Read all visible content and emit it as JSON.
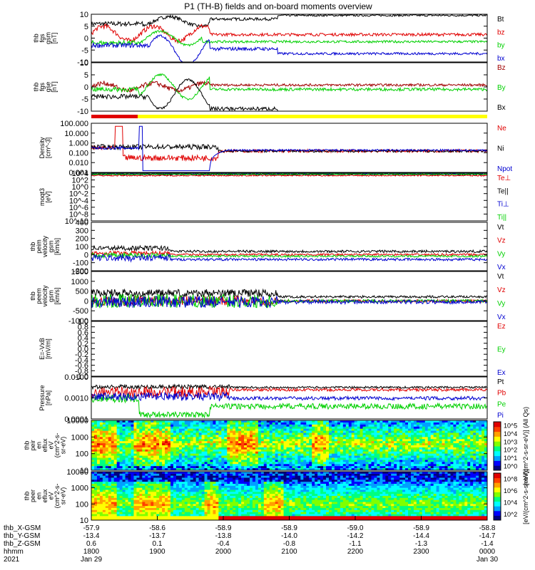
{
  "title": "P1 (TH-B) fields and on-board moments overview",
  "colors": {
    "black": "#000000",
    "red": "#e00000",
    "green": "#00d000",
    "blue": "#0000d0",
    "yellow": "#ffff00",
    "darkred": "#a00000"
  },
  "chart_data": [
    {
      "type": "line",
      "ylabel": [
        "thb",
        "fgs",
        "gsm",
        "[nT]"
      ],
      "yticks": [
        "10",
        "5",
        "0",
        "-5",
        "-10"
      ],
      "ylim": [
        -10,
        10
      ],
      "series": [
        {
          "name": "Bt",
          "color": "black"
        },
        {
          "name": "bz",
          "color": "red"
        },
        {
          "name": "by",
          "color": "green"
        },
        {
          "name": "bx",
          "color": "blue"
        }
      ]
    },
    {
      "type": "line",
      "ylabel": [
        "thb",
        "fgs",
        "gse",
        "[nT]"
      ],
      "yticks": [
        "10",
        "5",
        "0",
        "-5",
        "-10"
      ],
      "ylim": [
        -10,
        10
      ],
      "series": [
        {
          "name": "Bz",
          "color": "darkred"
        },
        {
          "name": "By",
          "color": "green"
        },
        {
          "name": "Bx",
          "color": "black"
        }
      ]
    },
    {
      "type": "line",
      "ylabel": [
        "Density",
        "[cm^-3]"
      ],
      "yticks": [
        "100.000",
        "10.000",
        "1.000",
        "0.100",
        "0.010",
        "0.001"
      ],
      "ylim": [
        0.001,
        100
      ],
      "series": [
        {
          "name": "Ne",
          "color": "red"
        },
        {
          "name": "Ni",
          "color": "black"
        },
        {
          "name": "Npot",
          "color": "blue"
        }
      ]
    },
    {
      "type": "line",
      "ylabel": [
        "moqt3",
        "[eV]"
      ],
      "yticks": [
        "10^4",
        "10^2",
        "10^0",
        "10^-2",
        "10^-4",
        "10^-6",
        "10^-8",
        "10^-10"
      ],
      "series": [
        {
          "name": "Te⊥",
          "color": "red"
        },
        {
          "name": "Te||",
          "color": "black"
        },
        {
          "name": "Ti⊥",
          "color": "blue"
        },
        {
          "name": "Ti||",
          "color": "green"
        }
      ]
    },
    {
      "type": "line",
      "ylabel": [
        "thb",
        "peim",
        "velocity",
        "gsm",
        "[km/s]"
      ],
      "yticks": [
        "400",
        "300",
        "200",
        "100",
        "0",
        "-100",
        "-200"
      ],
      "ylim": [
        -200,
        400
      ],
      "series": [
        {
          "name": "Vt",
          "color": "black"
        },
        {
          "name": "Vz",
          "color": "red"
        },
        {
          "name": "Vy",
          "color": "green"
        },
        {
          "name": "Vx",
          "color": "blue"
        }
      ]
    },
    {
      "type": "line",
      "ylabel": [
        "thb",
        "peem",
        "velocity",
        "gsm",
        "[km/s]"
      ],
      "yticks": [
        "1500",
        "1000",
        "500",
        "0",
        "-500",
        "-1000"
      ],
      "ylim": [
        -1000,
        1500
      ],
      "series": [
        {
          "name": "Vt",
          "color": "black"
        },
        {
          "name": "Vz",
          "color": "red"
        },
        {
          "name": "Vy",
          "color": "green"
        },
        {
          "name": "Vx",
          "color": "blue"
        }
      ]
    },
    {
      "type": "line",
      "ylabel": [
        "E=-VxB",
        "[mV/m]"
      ],
      "yticks": [
        "1.0",
        "0.8",
        "0.6",
        "0.4",
        "0.2",
        "0.0",
        "-0.2",
        "-0.4",
        "-0.6",
        "-0.8",
        "-1.0"
      ],
      "ylim": [
        -1,
        1
      ],
      "series": [
        {
          "name": "Ez",
          "color": "red"
        },
        {
          "name": "Ey",
          "color": "green"
        },
        {
          "name": "Ex",
          "color": "blue"
        }
      ]
    },
    {
      "type": "line",
      "ylabel": [
        "Pressure",
        "[nPa]"
      ],
      "yticks": [
        "0.0100",
        "0.0010",
        "0.0001"
      ],
      "ylim": [
        0.0001,
        0.1
      ],
      "series": [
        {
          "name": "Pt",
          "color": "black"
        },
        {
          "name": "Pb",
          "color": "red"
        },
        {
          "name": "Pe",
          "color": "green"
        },
        {
          "name": "Pi",
          "color": "blue"
        }
      ]
    },
    {
      "type": "heatmap",
      "ylabel": [
        "thb",
        "peir",
        "en",
        "eflux",
        "eV",
        "(cm^2-s-",
        "sr-eV)"
      ],
      "yticks": [
        "10000",
        "1000",
        "100",
        "10"
      ]
    },
    {
      "type": "heatmap",
      "ylabel": [
        "thb",
        "peer",
        "en",
        "eflux",
        "eV",
        "(cm^2-s-",
        "sr-eV)"
      ],
      "yticks": [
        "10000",
        "1000",
        "100",
        "10"
      ]
    }
  ],
  "colorbar1": {
    "ticks": [
      "10^5",
      "10^4",
      "10^3",
      "10^2",
      "10^1",
      "10^0"
    ],
    "label": "[eV/(cm^2-s-sr-eV)] (All Qs)"
  },
  "colorbar2": {
    "ticks": [
      "10^8",
      "10^6",
      "10^4",
      "10^2"
    ],
    "label": "[eV/(cm^2-s-sr-eV)]"
  },
  "xaxis": {
    "rows": [
      {
        "label": "thb_X-GSM",
        "values": [
          "-57.9",
          "-58.6",
          "-58.9",
          "-58.9",
          "-59.0",
          "-58.9",
          "-58.8"
        ]
      },
      {
        "label": "thb_Y-GSM",
        "values": [
          "-13.4",
          "-13.7",
          "-13.8",
          "-14.0",
          "-14.2",
          "-14.4",
          "-14.7"
        ]
      },
      {
        "label": "thb_Z-GSM",
        "values": [
          "0.6",
          "0.1",
          "-0.4",
          "-0.8",
          "-1.1",
          "-1.3",
          "-1.4"
        ]
      },
      {
        "label": "hhmm",
        "values": [
          "1800",
          "1900",
          "2000",
          "2100",
          "2200",
          "2300",
          "0000"
        ]
      },
      {
        "label": "2021",
        "values": [
          "Jan 29",
          "",
          "",
          "",
          "",
          "",
          "Jan 30"
        ]
      }
    ]
  }
}
